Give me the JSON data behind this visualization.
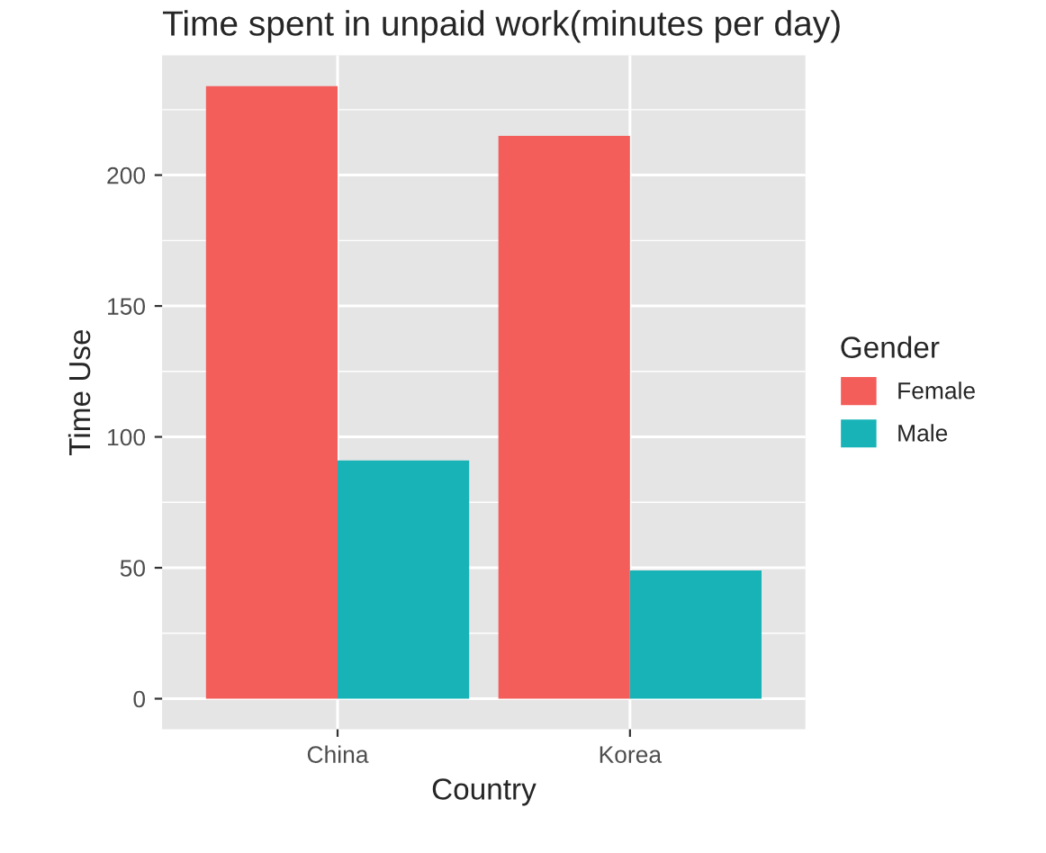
{
  "chart_data": {
    "type": "bar",
    "title": "Time spent in unpaid work(minutes per day)",
    "xlabel": "Country",
    "ylabel": "Time Use",
    "legend_title": "Gender",
    "categories": [
      "China",
      "Korea"
    ],
    "series": [
      {
        "name": "Female",
        "color": "#f35e5a",
        "values": [
          234,
          215
        ]
      },
      {
        "name": "Male",
        "color": "#17b3b7",
        "values": [
          91,
          49
        ]
      }
    ],
    "ylim": [
      -11.7,
      245.7
    ],
    "yticks": [
      0,
      50,
      100,
      150,
      200
    ],
    "grid": true,
    "legend": "right"
  }
}
